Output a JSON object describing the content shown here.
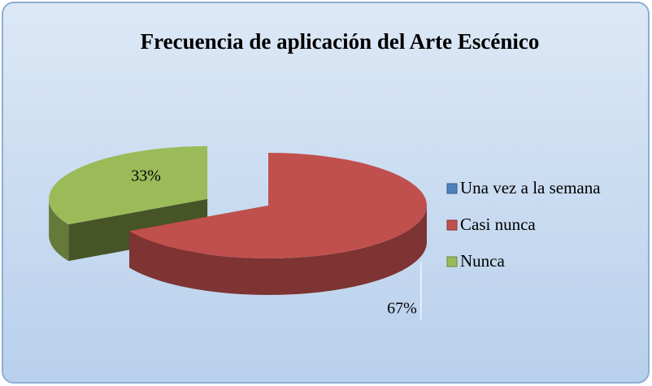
{
  "chart_data": {
    "type": "pie",
    "title": "Frecuencia de aplicación del Arte Escénico",
    "categories": [
      "Una vez a la semana",
      "Casi nunca",
      "Nunca"
    ],
    "values": [
      0,
      67,
      33
    ],
    "value_labels": [
      null,
      "67%",
      "33%"
    ],
    "colors": [
      "#4f81bd",
      "#c0504d",
      "#9bbb59"
    ],
    "legend": "right"
  }
}
